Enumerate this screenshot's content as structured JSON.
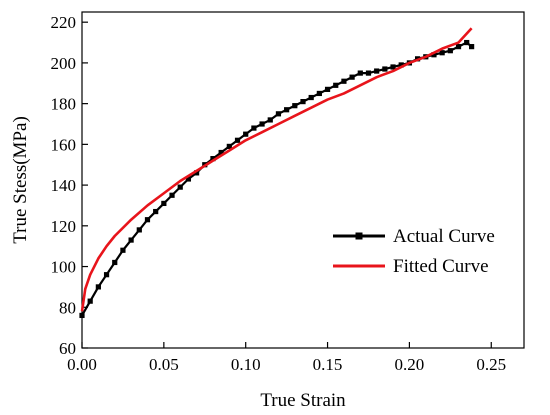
{
  "chart_data": {
    "type": "line",
    "title": "",
    "xlabel": "True Strain",
    "ylabel": "True Stess(MPa)",
    "xlim": [
      0.0,
      0.27
    ],
    "ylim": [
      60,
      225
    ],
    "xticks": [
      0.0,
      0.05,
      0.1,
      0.15,
      0.2,
      0.25
    ],
    "xtick_labels": [
      "0.00",
      "0.05",
      "0.10",
      "0.15",
      "0.20",
      "0.25"
    ],
    "yticks": [
      60,
      80,
      100,
      120,
      140,
      160,
      180,
      200,
      220
    ],
    "ytick_labels": [
      "60",
      "80",
      "100",
      "120",
      "140",
      "160",
      "180",
      "200",
      "220"
    ],
    "grid": false,
    "legend_position": "center-right",
    "series": [
      {
        "name": "Actual Curve",
        "style": "line-with-square-markers",
        "color": "#000000",
        "x": [
          0.0,
          0.005,
          0.01,
          0.015,
          0.02,
          0.025,
          0.03,
          0.035,
          0.04,
          0.045,
          0.05,
          0.055,
          0.06,
          0.065,
          0.07,
          0.075,
          0.08,
          0.085,
          0.09,
          0.095,
          0.1,
          0.105,
          0.11,
          0.115,
          0.12,
          0.125,
          0.13,
          0.135,
          0.14,
          0.145,
          0.15,
          0.155,
          0.16,
          0.165,
          0.17,
          0.175,
          0.18,
          0.185,
          0.19,
          0.195,
          0.2,
          0.205,
          0.21,
          0.215,
          0.22,
          0.225,
          0.23,
          0.235,
          0.238
        ],
        "y": [
          76,
          83,
          90,
          96,
          102,
          108,
          113,
          118,
          123,
          127,
          131,
          135,
          139,
          143,
          146,
          150,
          153,
          156,
          159,
          162,
          165,
          168,
          170,
          172,
          175,
          177,
          179,
          181,
          183,
          185,
          187,
          189,
          191,
          193,
          195,
          195,
          196,
          197,
          198,
          199,
          200,
          202,
          203,
          204,
          205,
          206,
          208,
          210,
          208
        ]
      },
      {
        "name": "Fitted Curve",
        "style": "line",
        "color": "#e8141b",
        "x": [
          0.0,
          0.002,
          0.005,
          0.01,
          0.015,
          0.02,
          0.03,
          0.04,
          0.05,
          0.06,
          0.07,
          0.08,
          0.09,
          0.1,
          0.11,
          0.12,
          0.13,
          0.14,
          0.15,
          0.16,
          0.17,
          0.18,
          0.19,
          0.2,
          0.21,
          0.22,
          0.23,
          0.238
        ],
        "y": [
          78,
          89,
          96,
          104,
          110,
          115,
          123,
          130,
          136,
          142,
          147,
          152,
          157,
          162,
          166,
          170,
          174,
          178,
          182,
          185,
          189,
          193,
          196,
          200,
          203,
          207,
          210,
          217
        ]
      }
    ]
  }
}
